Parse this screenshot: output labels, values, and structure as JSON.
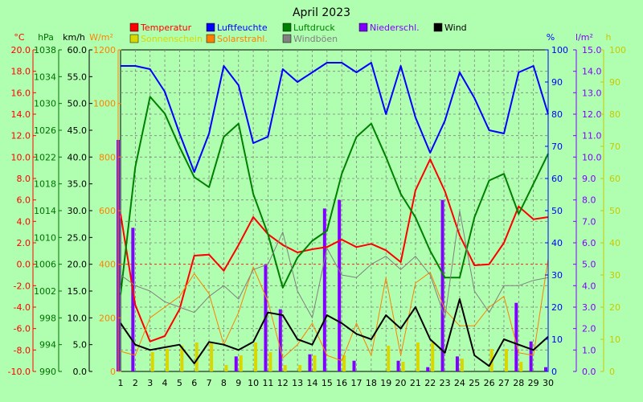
{
  "chart_data": {
    "type": "line",
    "title": "April 2023",
    "x": [
      1,
      2,
      3,
      4,
      5,
      6,
      7,
      8,
      9,
      10,
      11,
      12,
      13,
      14,
      15,
      16,
      17,
      18,
      19,
      20,
      21,
      22,
      23,
      24,
      25,
      26,
      27,
      28,
      29,
      30
    ],
    "axes": [
      {
        "id": "temp",
        "unit": "°C",
        "min": -10,
        "max": 20,
        "step": 2,
        "side": "left",
        "color": "#ff0000",
        "decimals": 1
      },
      {
        "id": "press",
        "unit": "hPa",
        "min": 990,
        "max": 1038,
        "step": 4,
        "side": "left",
        "color": "#007000",
        "decimals": 0
      },
      {
        "id": "speed",
        "unit": "km/h",
        "min": 0,
        "max": 60,
        "step": 5,
        "side": "left",
        "color": "#000000",
        "decimals": 1
      },
      {
        "id": "solar",
        "unit": "W/m²",
        "min": 0,
        "max": 1200,
        "step": 200,
        "side": "left",
        "color": "#ff8000",
        "decimals": 0
      },
      {
        "id": "hum",
        "unit": "%",
        "min": 0,
        "max": 100,
        "step": 10,
        "side": "right",
        "color": "#0000ff",
        "decimals": 0
      },
      {
        "id": "rain",
        "unit": "l/m²",
        "min": 0,
        "max": 15,
        "step": 1,
        "side": "right",
        "color": "#8000ff",
        "decimals": 1
      },
      {
        "id": "sun",
        "unit": "h",
        "min": 0,
        "max": 100,
        "step": 10,
        "side": "right",
        "color": "#c8c800",
        "decimals": 0
      }
    ],
    "legend": [
      {
        "name": "Temperatur",
        "color": "#ff0000"
      },
      {
        "name": "Sonnenschein",
        "color": "#d8d800"
      },
      {
        "name": "Luftfeuchte",
        "color": "#0000ff"
      },
      {
        "name": "Solarstrahl.",
        "color": "#ff8000"
      },
      {
        "name": "Luftdruck",
        "color": "#008000"
      },
      {
        "name": "Windböen",
        "color": "#808080"
      },
      {
        "name": "Niederschl.",
        "color": "#8000ff"
      },
      {
        "name": "Wind",
        "color": "#000000"
      }
    ],
    "series": [
      {
        "name": "Temperatur",
        "axis": "temp",
        "kind": "line",
        "color": "#ff0000",
        "width": 2,
        "values": [
          4.7,
          -3.8,
          -7.2,
          -6.7,
          -4.2,
          0.8,
          0.9,
          -0.6,
          1.8,
          4.4,
          2.8,
          1.8,
          1.1,
          1.4,
          1.6,
          2.3,
          1.6,
          1.9,
          1.3,
          0.2,
          6.9,
          9.8,
          6.8,
          2.7,
          -0.1,
          0.0,
          2.0,
          5.4,
          4.2,
          4.4
        ]
      },
      {
        "name": "Luftfeuchte",
        "axis": "hum",
        "kind": "line",
        "color": "#0000ff",
        "width": 2,
        "values": [
          95,
          95,
          94,
          87,
          74,
          62,
          74,
          95,
          89,
          71,
          73,
          94,
          90,
          93,
          96,
          96,
          93,
          96,
          80,
          95,
          79,
          68,
          78,
          93,
          85,
          75,
          74,
          93,
          95,
          80
        ]
      },
      {
        "name": "Luftdruck",
        "axis": "press",
        "kind": "line",
        "color": "#008000",
        "width": 2,
        "values": [
          1001.5,
          1020.5,
          1031.0,
          1028.5,
          1023.5,
          1019.0,
          1017.5,
          1025.0,
          1027.0,
          1016.5,
          1010.5,
          1002.5,
          1007.0,
          1009.5,
          1011.0,
          1019.5,
          1025.0,
          1027.0,
          1022.0,
          1016.5,
          1013.0,
          1008.0,
          1004.0,
          1004.0,
          1013.0,
          1018.5,
          1019.5,
          1013.5,
          1018.0,
          1022.5
        ]
      },
      {
        "name": "Solarstrahl.",
        "axis": "solar",
        "kind": "line",
        "color": "#ff8000",
        "width": 1,
        "values": [
          75,
          60,
          200,
          240,
          280,
          365,
          290,
          100,
          220,
          390,
          260,
          50,
          100,
          180,
          60,
          40,
          180,
          60,
          350,
          60,
          330,
          370,
          230,
          170,
          170,
          240,
          280,
          70,
          60,
          420
        ]
      },
      {
        "name": "Windböen",
        "axis": "speed",
        "kind": "line",
        "color": "#808080",
        "width": 1,
        "values": [
          18.0,
          16.0,
          15.0,
          13.0,
          12.0,
          11.0,
          14.0,
          16.0,
          13.5,
          19.0,
          20.0,
          26.0,
          15.0,
          10.0,
          23.0,
          18.0,
          17.5,
          20.0,
          21.5,
          19.0,
          21.5,
          18.0,
          10.0,
          30.0,
          15.0,
          11.0,
          16.0,
          16.0,
          17.0,
          17.5
        ]
      },
      {
        "name": "Wind",
        "axis": "speed",
        "kind": "line",
        "color": "#000000",
        "width": 2,
        "values": [
          9.0,
          5.0,
          4.0,
          4.5,
          5.0,
          1.5,
          5.5,
          5.0,
          4.0,
          5.5,
          11.0,
          10.5,
          6.0,
          5.0,
          10.5,
          9.0,
          7.0,
          6.0,
          10.5,
          8.0,
          12.0,
          6.0,
          3.5,
          13.5,
          3.0,
          1.0,
          6.0,
          5.0,
          4.0,
          6.5
        ]
      },
      {
        "name": "Sonnenschein",
        "axis": "sun",
        "kind": "bar",
        "color": "#d8d800",
        "offset": 3,
        "values": [
          0,
          0,
          6,
          7,
          8,
          9,
          9,
          2,
          5,
          9,
          6,
          2,
          2,
          5,
          0,
          5,
          0,
          0,
          8,
          3,
          9,
          9,
          0,
          4,
          0,
          7,
          7,
          3,
          0,
          0
        ]
      },
      {
        "name": "Niederschl.",
        "axis": "rain",
        "kind": "bar",
        "color": "#8000ff",
        "offset": -3,
        "values": [
          10.8,
          6.7,
          0,
          0,
          0,
          0,
          0,
          0,
          0.7,
          0,
          5.0,
          2.9,
          0,
          0.8,
          7.6,
          8.0,
          0.5,
          0,
          0,
          0.5,
          0,
          0.2,
          8.0,
          0.7,
          0,
          0,
          0,
          3.2,
          1.4,
          0.2
        ]
      }
    ]
  }
}
